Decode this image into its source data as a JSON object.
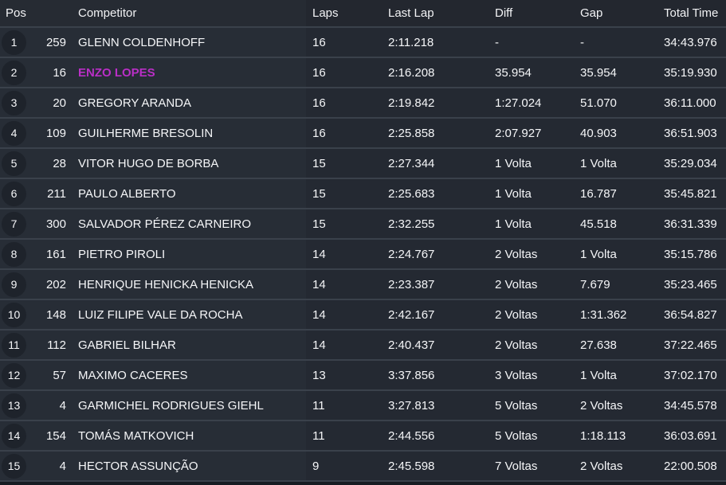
{
  "colors": {
    "highlight_name": "#b92fc6",
    "row_background": "#272d36",
    "header_background": "#262b33",
    "separator": "#3a414b",
    "position_badge": "#1e232b",
    "text": "#f5f6f8"
  },
  "table": {
    "columns": [
      "Pos",
      "Competitor",
      "Laps",
      "Last Lap",
      "Diff",
      "Gap",
      "Total Time"
    ],
    "rows": [
      {
        "pos": "1",
        "no": "259",
        "name": "GLENN COLDENHOFF",
        "laps": "16",
        "last_lap": "2:11.218",
        "diff": "-",
        "gap": "-",
        "total": "34:43.976",
        "highlight": false
      },
      {
        "pos": "2",
        "no": "16",
        "name": "ENZO LOPES",
        "laps": "16",
        "last_lap": "2:16.208",
        "diff": "35.954",
        "gap": "35.954",
        "total": "35:19.930",
        "highlight": true
      },
      {
        "pos": "3",
        "no": "20",
        "name": "GREGORY ARANDA",
        "laps": "16",
        "last_lap": "2:19.842",
        "diff": "1:27.024",
        "gap": "51.070",
        "total": "36:11.000",
        "highlight": false
      },
      {
        "pos": "4",
        "no": "109",
        "name": "GUILHERME BRESOLIN",
        "laps": "16",
        "last_lap": "2:25.858",
        "diff": "2:07.927",
        "gap": "40.903",
        "total": "36:51.903",
        "highlight": false
      },
      {
        "pos": "5",
        "no": "28",
        "name": "VITOR HUGO DE BORBA",
        "laps": "15",
        "last_lap": "2:27.344",
        "diff": "1 Volta",
        "gap": "1 Volta",
        "total": "35:29.034",
        "highlight": false
      },
      {
        "pos": "6",
        "no": "211",
        "name": "PAULO ALBERTO",
        "laps": "15",
        "last_lap": "2:25.683",
        "diff": "1 Volta",
        "gap": "16.787",
        "total": "35:45.821",
        "highlight": false
      },
      {
        "pos": "7",
        "no": "300",
        "name": "SALVADOR PÉREZ CARNEIRO",
        "laps": "15",
        "last_lap": "2:32.255",
        "diff": "1 Volta",
        "gap": "45.518",
        "total": "36:31.339",
        "highlight": false
      },
      {
        "pos": "8",
        "no": "161",
        "name": "PIETRO PIROLI",
        "laps": "14",
        "last_lap": "2:24.767",
        "diff": "2 Voltas",
        "gap": "1 Volta",
        "total": "35:15.786",
        "highlight": false
      },
      {
        "pos": "9",
        "no": "202",
        "name": "HENRIQUE HENICKA HENICKA",
        "laps": "14",
        "last_lap": "2:23.387",
        "diff": "2 Voltas",
        "gap": "7.679",
        "total": "35:23.465",
        "highlight": false
      },
      {
        "pos": "10",
        "no": "148",
        "name": "LUIZ FILIPE VALE DA ROCHA",
        "laps": "14",
        "last_lap": "2:42.167",
        "diff": "2 Voltas",
        "gap": "1:31.362",
        "total": "36:54.827",
        "highlight": false
      },
      {
        "pos": "11",
        "no": "112",
        "name": "GABRIEL BILHAR",
        "laps": "14",
        "last_lap": "2:40.437",
        "diff": "2 Voltas",
        "gap": "27.638",
        "total": "37:22.465",
        "highlight": false
      },
      {
        "pos": "12",
        "no": "57",
        "name": "MAXIMO CACERES",
        "laps": "13",
        "last_lap": "3:37.856",
        "diff": "3 Voltas",
        "gap": "1 Volta",
        "total": "37:02.170",
        "highlight": false
      },
      {
        "pos": "13",
        "no": "4",
        "name": "GARMICHEL RODRIGUES GIEHL",
        "laps": "11",
        "last_lap": "3:27.813",
        "diff": "5 Voltas",
        "gap": "2 Voltas",
        "total": "34:45.578",
        "highlight": false
      },
      {
        "pos": "14",
        "no": "154",
        "name": "TOMÁS MATKOVICH",
        "laps": "11",
        "last_lap": "2:44.556",
        "diff": "5 Voltas",
        "gap": "1:18.113",
        "total": "36:03.691",
        "highlight": false
      },
      {
        "pos": "15",
        "no": "4",
        "name": "HECTOR ASSUNÇÃO",
        "laps": "9",
        "last_lap": "2:45.598",
        "diff": "7 Voltas",
        "gap": "2 Voltas",
        "total": "22:00.508",
        "highlight": false
      }
    ]
  }
}
